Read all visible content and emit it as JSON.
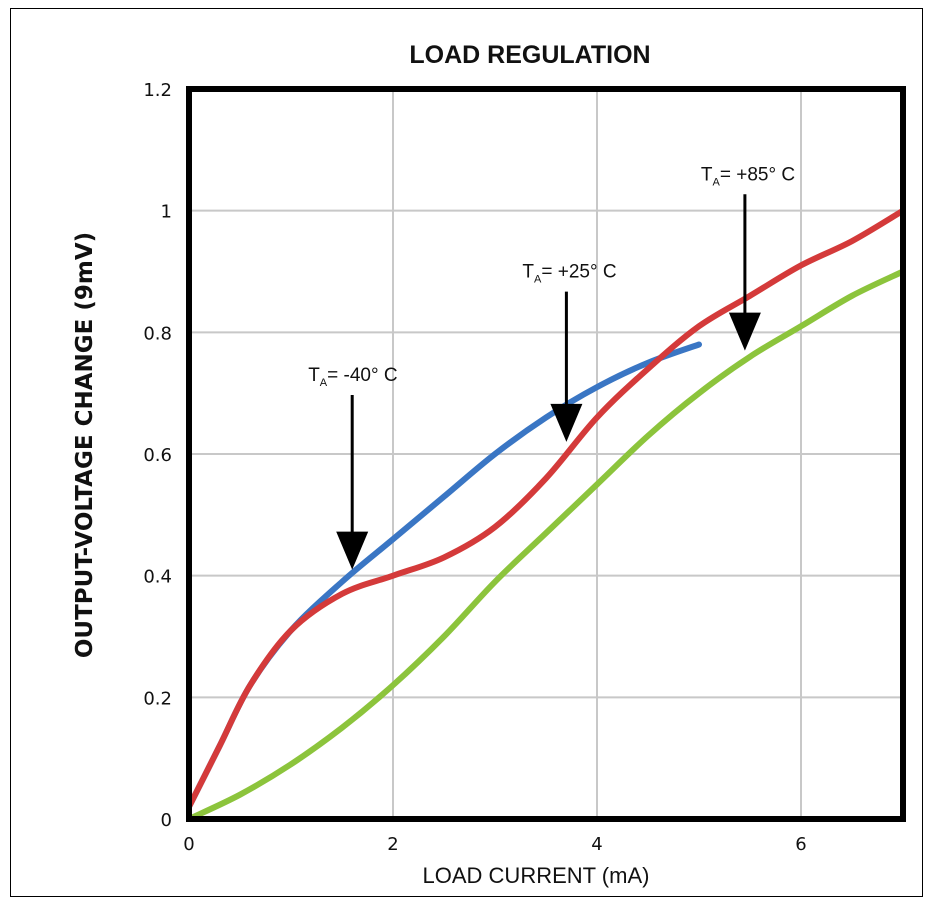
{
  "chart_data": {
    "type": "line",
    "title": "LOAD REGULATION",
    "xlabel": "LOAD CURRENT (mA)",
    "ylabel": "OUTPUT-VOLTAGE CHANGE (9mV)",
    "xlim": [
      0,
      7
    ],
    "ylim": [
      0,
      1.2
    ],
    "x_ticks": [
      0,
      2,
      4,
      6
    ],
    "y_ticks": [
      0,
      0.2,
      0.4,
      0.6,
      0.8,
      1,
      1.2
    ],
    "x_tick_labels": [
      "0",
      "2",
      "4",
      "6"
    ],
    "y_tick_labels": [
      "0",
      "0.2",
      "0.4",
      "0.6",
      "0.8",
      "1",
      "1.2"
    ],
    "grid": true,
    "series": [
      {
        "name": "-40° C",
        "color": "#3a76c4",
        "x": [
          0,
          0.3,
          0.6,
          1.0,
          1.5,
          2.0,
          2.5,
          3.0,
          3.5,
          4.0,
          4.5,
          5.0
        ],
        "y": [
          0.02,
          0.12,
          0.22,
          0.31,
          0.39,
          0.46,
          0.53,
          0.6,
          0.66,
          0.71,
          0.75,
          0.78
        ]
      },
      {
        "name": "+25° C",
        "color": "#d43a3a",
        "x": [
          0,
          0.3,
          0.6,
          1.0,
          1.5,
          2.0,
          2.5,
          3.0,
          3.5,
          4.0,
          4.5,
          5.0,
          5.5,
          6.0,
          6.5,
          7.0
        ],
        "y": [
          0.02,
          0.12,
          0.22,
          0.31,
          0.37,
          0.4,
          0.43,
          0.48,
          0.56,
          0.66,
          0.74,
          0.81,
          0.86,
          0.91,
          0.95,
          1.0
        ]
      },
      {
        "name": "+85° C",
        "color": "#8cc43c",
        "x": [
          0,
          0.5,
          1.0,
          1.5,
          2.0,
          2.5,
          3.0,
          3.5,
          4.0,
          4.5,
          5.0,
          5.5,
          6.0,
          6.5,
          7.0
        ],
        "y": [
          0.0,
          0.04,
          0.09,
          0.15,
          0.22,
          0.3,
          0.39,
          0.47,
          0.55,
          0.63,
          0.7,
          0.76,
          0.81,
          0.86,
          0.9
        ]
      }
    ],
    "annotations": [
      {
        "label": "= -40° C",
        "prefix": "T",
        "subscript": "A",
        "target_x": 1.6,
        "target_y": 0.41,
        "text_x": 1.6,
        "text_y": 0.72
      },
      {
        "label": "= +25° C",
        "prefix": "T",
        "subscript": "A",
        "target_x": 3.7,
        "target_y": 0.62,
        "text_x": 3.7,
        "text_y": 0.89
      },
      {
        "label": "= +85° C",
        "prefix": "T",
        "subscript": "A",
        "target_x": 5.45,
        "target_y": 0.77,
        "text_x": 5.45,
        "text_y": 1.05
      }
    ]
  }
}
